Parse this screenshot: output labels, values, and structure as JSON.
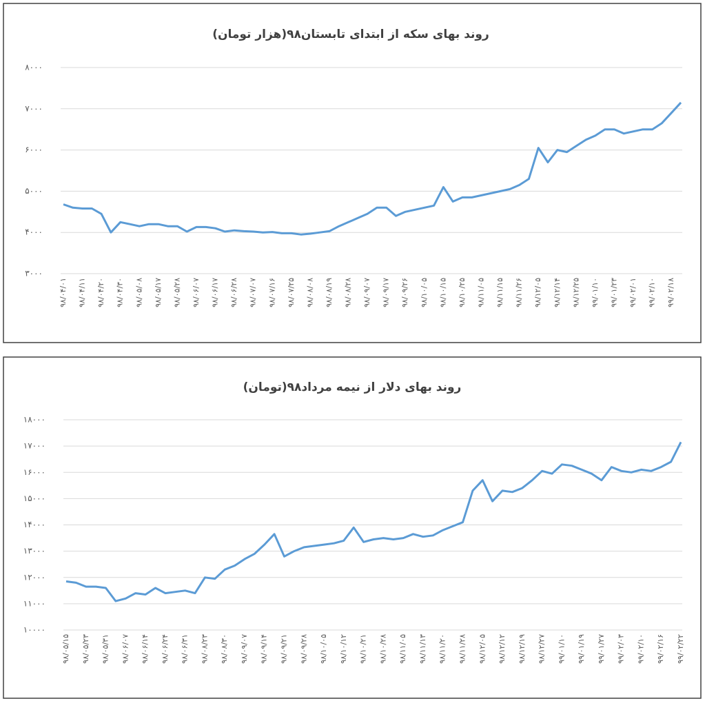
{
  "chart_data": [
    {
      "type": "line",
      "title": "روند بهای سکه از ابتدای تابستان۹۸(هزار تومان)",
      "color": "#5b9bd5",
      "grid": true,
      "ylim": [
        3000,
        8000
      ],
      "yticks": [
        {
          "value": 3000,
          "label": "۳۰۰۰"
        },
        {
          "value": 4000,
          "label": "۴۰۰۰"
        },
        {
          "value": 5000,
          "label": "۵۰۰۰"
        },
        {
          "value": 6000,
          "label": "۶۰۰۰"
        },
        {
          "value": 7000,
          "label": "۷۰۰۰"
        },
        {
          "value": 8000,
          "label": "۸۰۰۰"
        }
      ],
      "categories": [
        "۹۸/۰۴/۰۱",
        null,
        "۹۸/۰۴/۱۱",
        null,
        "۹۸/۰۴/۲۰",
        null,
        "۹۸/۰۴/۳۰",
        null,
        "۹۸/۰۵/۰۸",
        null,
        "۹۸/۰۵/۱۷",
        null,
        "۹۸/۰۵/۲۸",
        null,
        "۹۸/۰۶/۰۷",
        null,
        "۹۸/۰۶/۱۷",
        null,
        "۹۸/۰۶/۲۸",
        null,
        "۹۸/۰۷/۰۷",
        null,
        "۹۸/۰۷/۱۶",
        null,
        "۹۸/۰۷/۲۵",
        null,
        "۹۸/۰۸/۰۸",
        null,
        "۹۸/۰۸/۱۹",
        null,
        "۹۸/۰۸/۲۸",
        null,
        "۹۸/۰۹/۰۷",
        null,
        "۹۸/۰۹/۱۷",
        null,
        "۹۸/۰۹/۲۶",
        null,
        "۹۸/۱۰/۰۵",
        null,
        "۹۸/۱۰/۱۵",
        null,
        "۹۸/۱۰/۲۵",
        null,
        "۹۸/۱۱/۰۵",
        null,
        "۹۸/۱۱/۱۵",
        null,
        "۹۸/۱۱/۲۶",
        null,
        "۹۸/۱۲/۰۵",
        null,
        "۹۸/۱۲/۱۴",
        null,
        "۹۸/۱۲/۲۵",
        null,
        "۹۹/۰۱/۱۰",
        null,
        "۹۹/۰۱/۲۳",
        null,
        "۹۹/۰۲/۰۱",
        null,
        "۹۹/۰۲/۱۰",
        null,
        "۹۹/۰۲/۱۸",
        null
      ],
      "values": [
        4680,
        4600,
        4580,
        4580,
        4450,
        4000,
        4250,
        4200,
        4150,
        4200,
        4200,
        4150,
        4150,
        4020,
        4130,
        4130,
        4100,
        4020,
        4050,
        4030,
        4020,
        4000,
        4010,
        3980,
        3980,
        3950,
        3970,
        4000,
        4030,
        4150,
        4250,
        4350,
        4450,
        4600,
        4600,
        4400,
        4500,
        4550,
        4600,
        4650,
        5100,
        4750,
        4850,
        4850,
        4900,
        4950,
        5000,
        5050,
        5150,
        5300,
        6050,
        5700,
        6000,
        5950,
        6100,
        6250,
        6350,
        6500,
        6500,
        6400,
        6450,
        6500,
        6500,
        6650,
        6900,
        7150
      ]
    },
    {
      "type": "line",
      "title": "روند بهای دلار از نیمه مرداد۹۸(تومان)",
      "color": "#5b9bd5",
      "grid": true,
      "ylim": [
        10000,
        18000
      ],
      "yticks": [
        {
          "value": 10000,
          "label": "۱۰۰۰۰"
        },
        {
          "value": 11000,
          "label": "۱۱۰۰۰"
        },
        {
          "value": 12000,
          "label": "۱۲۰۰۰"
        },
        {
          "value": 13000,
          "label": "۱۳۰۰۰"
        },
        {
          "value": 14000,
          "label": "۱۴۰۰۰"
        },
        {
          "value": 15000,
          "label": "۱۵۰۰۰"
        },
        {
          "value": 16000,
          "label": "۱۶۰۰۰"
        },
        {
          "value": 17000,
          "label": "۱۷۰۰۰"
        },
        {
          "value": 18000,
          "label": "۱۸۰۰۰"
        }
      ],
      "categories": [
        "۹۸/۰۵/۱۵",
        null,
        "۹۸/۰۵/۲۳",
        null,
        "۹۸/۰۵/۳۱",
        null,
        "۹۸/۰۶/۰۷",
        null,
        "۹۸/۰۶/۱۴",
        null,
        "۹۸/۰۶/۲۴",
        null,
        "۹۸/۰۶/۳۱",
        null,
        "۹۸/۰۸/۲۳",
        null,
        "۹۸/۰۸/۳۰",
        null,
        "۹۸/۰۹/۰۷",
        null,
        "۹۸/۰۹/۱۴",
        null,
        "۹۸/۰۹/۲۱",
        null,
        "۹۸/۰۹/۲۸",
        null,
        "۹۸/۱۰/۰۵",
        null,
        "۹۸/۱۰/۱۲",
        null,
        "۹۸/۱۰/۲۱",
        null,
        "۹۸/۱۰/۲۸",
        null,
        "۹۸/۱۱/۰۵",
        null,
        "۹۸/۱۱/۱۳",
        null,
        "۹۸/۱۱/۲۰",
        null,
        "۹۸/۱۱/۲۸",
        null,
        "۹۸/۱۲/۰۵",
        null,
        "۹۸/۱۲/۱۲",
        null,
        "۹۸/۱۲/۱۹",
        null,
        "۹۸/۱۲/۲۷",
        null,
        "۹۹/۰۱/۱۰",
        null,
        "۹۹/۰۱/۱۹",
        null,
        "۹۹/۰۱/۲۷",
        null,
        "۹۹/۰۲/۰۳",
        null,
        "۹۹/۰۲/۱۰",
        null,
        "۹۹/۰۲/۱۶",
        null,
        "۹۹/۰۲/۲۲"
      ],
      "values": [
        11850,
        11800,
        11650,
        11650,
        11600,
        11100,
        11200,
        11400,
        11350,
        11600,
        11400,
        11450,
        11500,
        11400,
        12000,
        11950,
        12300,
        12450,
        12700,
        12900,
        13250,
        13650,
        12800,
        13000,
        13150,
        13200,
        13250,
        13300,
        13400,
        13900,
        13350,
        13450,
        13500,
        13450,
        13500,
        13650,
        13550,
        13600,
        13800,
        13950,
        14100,
        15300,
        15700,
        14900,
        15300,
        15250,
        15400,
        15700,
        16050,
        15950,
        16300,
        16250,
        16100,
        15950,
        15700,
        16200,
        16050,
        16000,
        16100,
        16050,
        16200,
        16400,
        17150
      ]
    }
  ]
}
